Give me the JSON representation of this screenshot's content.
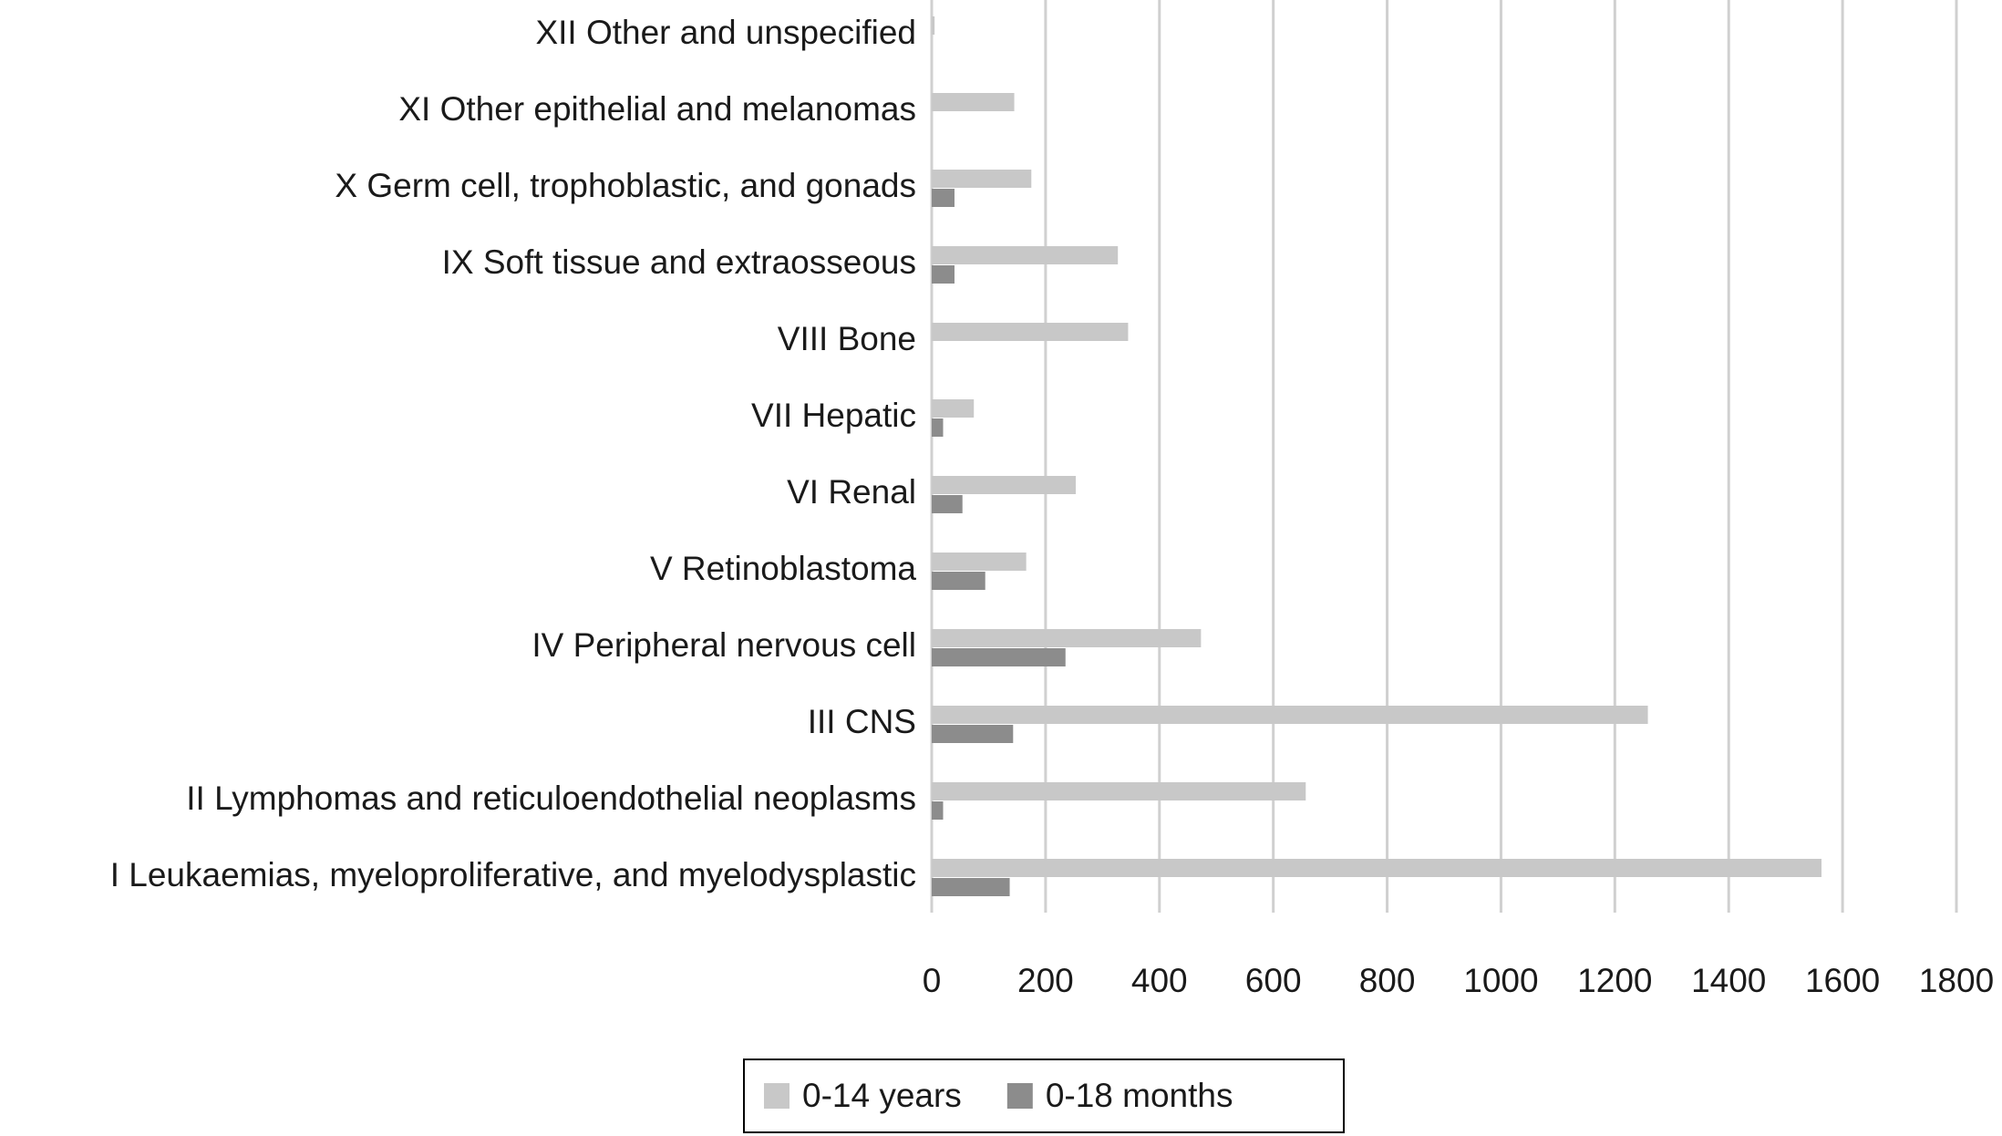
{
  "chart_data": {
    "type": "bar",
    "orientation": "horizontal",
    "categories": [
      "I Leukaemias, myeloproliferative, and myelodysplastic",
      "II Lymphomas and reticuloendothelial neoplasms",
      "III CNS",
      "IV Peripheral nervous cell",
      "V Retinoblastoma",
      "VI Renal",
      "VII Hepatic",
      "VIII Bone",
      "IX Soft tissue and extraosseous",
      "X Germ cell, trophoblastic, and gonads",
      "XI Other epithelial and melanomas",
      "XII Other and unspecified"
    ],
    "series": [
      {
        "name": "0-14 years",
        "color": "#c8c8c8",
        "values": [
          1563,
          657,
          1258,
          473,
          166,
          253,
          74,
          345,
          327,
          175,
          145,
          5
        ]
      },
      {
        "name": "0-18 months",
        "color": "#8c8c8c",
        "values": [
          137,
          20,
          143,
          235,
          94,
          54,
          20,
          0,
          40,
          40,
          0,
          0
        ]
      }
    ],
    "xlim": [
      0,
      1800
    ],
    "xticks": [
      0,
      200,
      400,
      600,
      800,
      1000,
      1200,
      1400,
      1600,
      1800
    ],
    "grid": true,
    "legend": "bottom"
  }
}
